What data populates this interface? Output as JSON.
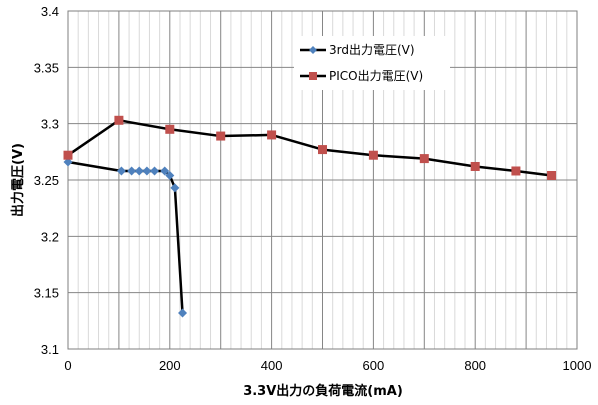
{
  "chart_data": {
    "type": "line",
    "xlabel": "3.3V出力の負荷電流(mA)",
    "ylabel": "出力電圧(V)",
    "xlim": [
      0,
      1000
    ],
    "ylim": [
      3.1,
      3.4
    ],
    "x_ticks": [
      "0",
      "200",
      "400",
      "600",
      "800",
      "1000"
    ],
    "y_ticks": [
      "3.1",
      "3.15",
      "3.2",
      "3.25",
      "3.3",
      "3.35",
      "3.4"
    ],
    "grid": true,
    "legend_position": "top-right",
    "series": [
      {
        "name": "3rd出力電圧(V)",
        "marker": "diamond",
        "line_color": "#000000",
        "marker_color": "#4f81bd",
        "points": [
          [
            0,
            3.266
          ],
          [
            105,
            3.258
          ],
          [
            125,
            3.258
          ],
          [
            140,
            3.258
          ],
          [
            155,
            3.258
          ],
          [
            170,
            3.258
          ],
          [
            190,
            3.258
          ],
          [
            200,
            3.254
          ],
          [
            210,
            3.243
          ],
          [
            225,
            3.132
          ]
        ]
      },
      {
        "name": "PICO出力電圧(V)",
        "marker": "square",
        "line_color": "#000000",
        "marker_color": "#c0504d",
        "points": [
          [
            0,
            3.272
          ],
          [
            100,
            3.303
          ],
          [
            200,
            3.295
          ],
          [
            300,
            3.289
          ],
          [
            400,
            3.29
          ],
          [
            500,
            3.277
          ],
          [
            600,
            3.272
          ],
          [
            700,
            3.269
          ],
          [
            800,
            3.262
          ],
          [
            880,
            3.258
          ],
          [
            950,
            3.254
          ]
        ]
      }
    ]
  }
}
